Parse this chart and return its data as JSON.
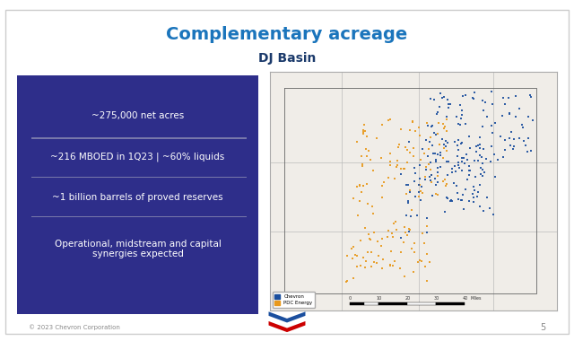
{
  "title_main": "Complementary acreage",
  "title_sub": "DJ Basin",
  "title_color": "#1B75BC",
  "subtitle_color": "#1B3A6B",
  "bg_color": "#FFFFFF",
  "slide_border_color": "#CCCCCC",
  "left_panel_color": "#2E2E8A",
  "left_text_color": "#FFFFFF",
  "bullet_points": [
    "~275,000 net acres",
    "~216 MBOED in 1Q23 | ~60% liquids",
    "~1 billion barrels of proved reserves",
    "Operational, midstream and capital\nsynergies expected"
  ],
  "separator_color": "#7777AA",
  "footer_text": "© 2023 Chevron Corporation",
  "footer_color": "#888888",
  "page_number": "5",
  "chevron_blue": "#1B4F9E",
  "pdc_orange": "#E8991C",
  "map_bg": "#F0EDE8",
  "map_border": "#AAAAAA",
  "legend_chevron": "Chevron",
  "legend_pdc": "PDC Energy"
}
